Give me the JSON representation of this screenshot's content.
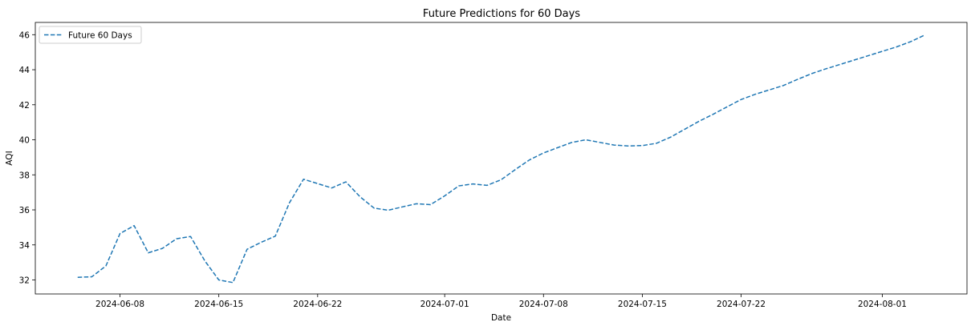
{
  "chart_data": {
    "type": "line",
    "title": "Future Predictions for 60 Days",
    "xlabel": "Date",
    "ylabel": "AQI",
    "x_type": "date",
    "xlim": [
      "2024-06-02",
      "2024-08-07"
    ],
    "ylim": [
      31.2,
      46.7
    ],
    "x_ticks": [
      "2024-06-08",
      "2024-06-15",
      "2024-06-22",
      "2024-07-01",
      "2024-07-08",
      "2024-07-15",
      "2024-07-22",
      "2024-08-01"
    ],
    "y_ticks": [
      32,
      34,
      36,
      38,
      40,
      42,
      44,
      46
    ],
    "grid": false,
    "legend": {
      "position": "upper-left",
      "entries": [
        "Future 60 Days"
      ]
    },
    "colors": {
      "series": "#1f77b4"
    },
    "series": [
      {
        "name": "Future 60 Days",
        "style": "dashed",
        "x": [
          "2024-06-05",
          "2024-06-06",
          "2024-06-07",
          "2024-06-08",
          "2024-06-09",
          "2024-06-10",
          "2024-06-11",
          "2024-06-12",
          "2024-06-13",
          "2024-06-14",
          "2024-06-15",
          "2024-06-16",
          "2024-06-17",
          "2024-06-18",
          "2024-06-19",
          "2024-06-20",
          "2024-06-21",
          "2024-06-22",
          "2024-06-23",
          "2024-06-24",
          "2024-06-25",
          "2024-06-26",
          "2024-06-27",
          "2024-06-28",
          "2024-06-29",
          "2024-06-30",
          "2024-07-01",
          "2024-07-02",
          "2024-07-03",
          "2024-07-04",
          "2024-07-05",
          "2024-07-06",
          "2024-07-07",
          "2024-07-08",
          "2024-07-09",
          "2024-07-10",
          "2024-07-11",
          "2024-07-12",
          "2024-07-13",
          "2024-07-14",
          "2024-07-15",
          "2024-07-16",
          "2024-07-17",
          "2024-07-18",
          "2024-07-19",
          "2024-07-20",
          "2024-07-21",
          "2024-07-22",
          "2024-07-23",
          "2024-07-24",
          "2024-07-25",
          "2024-07-26",
          "2024-07-27",
          "2024-07-28",
          "2024-07-29",
          "2024-07-30",
          "2024-07-31",
          "2024-08-01",
          "2024-08-02",
          "2024-08-03",
          "2024-08-04"
        ],
        "values": [
          32.15,
          32.18,
          32.8,
          34.65,
          35.1,
          33.55,
          33.8,
          34.35,
          34.48,
          33.1,
          32.0,
          31.85,
          33.75,
          34.15,
          34.5,
          36.4,
          37.75,
          37.5,
          37.25,
          37.6,
          36.75,
          36.1,
          35.98,
          36.17,
          36.35,
          36.3,
          36.8,
          37.37,
          37.48,
          37.4,
          37.72,
          38.3,
          38.85,
          39.25,
          39.55,
          39.85,
          40.0,
          39.85,
          39.7,
          39.65,
          39.67,
          39.8,
          40.15,
          40.6,
          41.05,
          41.45,
          41.88,
          42.3,
          42.6,
          42.85,
          43.1,
          43.45,
          43.78,
          44.05,
          44.3,
          44.55,
          44.8,
          45.05,
          45.3,
          45.6,
          45.98
        ]
      }
    ]
  }
}
